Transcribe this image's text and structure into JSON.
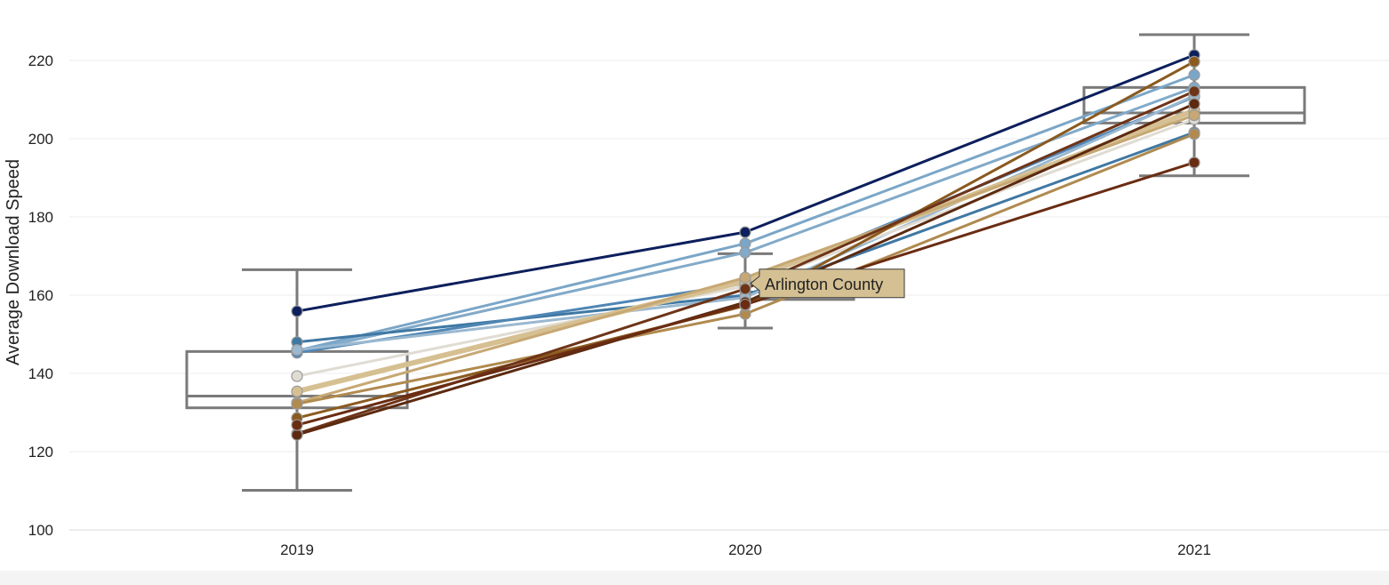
{
  "chart_data": {
    "type": "line",
    "title": "",
    "xlabel": "",
    "ylabel": "Average Download Speed",
    "categories": [
      "2019",
      "2020",
      "2021"
    ],
    "ylim": [
      100,
      230
    ],
    "yticks": [
      100,
      120,
      140,
      160,
      180,
      200,
      220
    ],
    "grid": true,
    "boxplots": [
      {
        "category": "2019",
        "whisker_low": 110.1,
        "q1": 131.2,
        "median": 134.2,
        "q3": 145.6,
        "whisker_high": 166.5
      },
      {
        "category": "2020",
        "whisker_low": 151.6,
        "q1": 158.9,
        "median": 160.8,
        "q3": 163.4,
        "whisker_high": 170.6
      },
      {
        "category": "2021",
        "whisker_low": 190.5,
        "q1": 204.0,
        "median": 206.6,
        "q3": 213.1,
        "whisker_high": 226.6
      }
    ],
    "series": [
      {
        "color": "#0d1f5c",
        "width": 3,
        "values": [
          155.9,
          176.1,
          221.4
        ]
      },
      {
        "color": "#7aa6c8",
        "width": 3,
        "values": [
          145.8,
          173.2,
          216.3
        ]
      },
      {
        "color": "#82aac9",
        "width": 3,
        "values": [
          145.3,
          170.9,
          213.1
        ]
      },
      {
        "color": "#3f78a3",
        "width": 3,
        "values": [
          148.0,
          160.0,
          201.6
        ]
      },
      {
        "name": "Arlington County",
        "color": "#4f86b5",
        "width": 3,
        "values": [
          145.3,
          163.0,
          210.7
        ]
      },
      {
        "color": "#9ab8d0",
        "width": 3,
        "values": [
          146.0,
          159.4,
          211.0
        ]
      },
      {
        "color": "#e0dcd3",
        "width": 3,
        "values": [
          139.3,
          162.3,
          205.0
        ]
      },
      {
        "color": "#d6c092",
        "width": 6,
        "values": [
          135.4,
          163.6,
          207.2
        ]
      },
      {
        "color": "#c7a874",
        "width": 3,
        "values": [
          132.5,
          164.5,
          206.0
        ]
      },
      {
        "color": "#b08a4f",
        "width": 3,
        "values": [
          132.2,
          155.2,
          201.2
        ]
      },
      {
        "color": "#8b5a1f",
        "width": 3,
        "values": [
          128.6,
          157.3,
          219.7
        ]
      },
      {
        "color": "#6e3418",
        "width": 3,
        "values": [
          124.6,
          161.6,
          212.1
        ]
      },
      {
        "color": "#5c2a10",
        "width": 3,
        "values": [
          124.3,
          158.2,
          208.9
        ]
      },
      {
        "color": "#6a2c12",
        "width": 3,
        "values": [
          126.8,
          157.6,
          193.9
        ]
      }
    ],
    "tooltip": {
      "category": "2020",
      "value": 163.0,
      "text": "Arlington County",
      "background": "#d4c092"
    }
  }
}
